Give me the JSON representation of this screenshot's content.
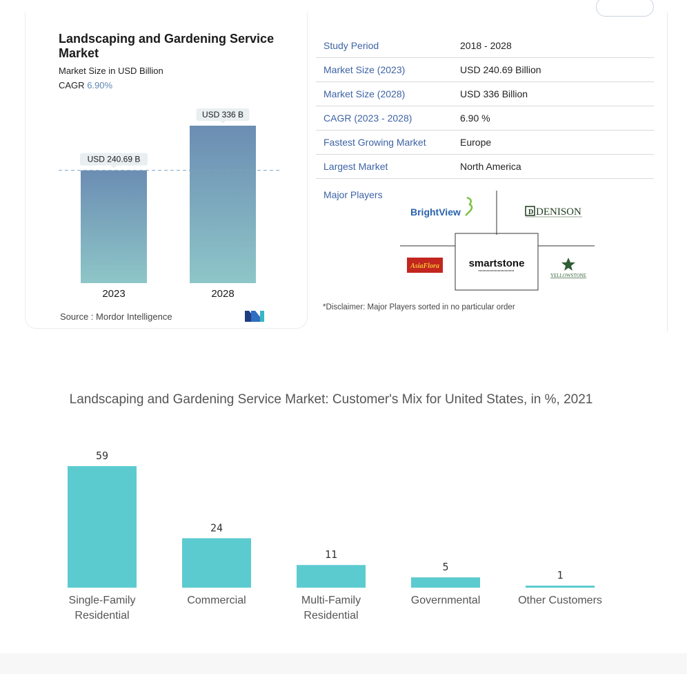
{
  "card": {
    "title": "Landscaping and Gardening Service Market",
    "subtitle": "Market Size in USD Billion",
    "cagr_label": "CAGR",
    "cagr_value": "6.90%",
    "source": "Source :  Mordor Intelligence",
    "brand_logo_color": "#1f3d82"
  },
  "card_chart": {
    "type": "bar",
    "categories": [
      "2023",
      "2028"
    ],
    "values": [
      240.69,
      336
    ],
    "data_labels": [
      "USD 240.69 B",
      "USD 336 B"
    ],
    "baseline_reference": 240.69,
    "gradient_top": "#6b8db3",
    "gradient_bottom": "#8ec6c8"
  },
  "info_rows": [
    {
      "key": "Study Period",
      "value": "2018 - 2028"
    },
    {
      "key": "Market Size (2023)",
      "value": "USD 240.69 Billion"
    },
    {
      "key": "Market Size (2028)",
      "value": "USD 336 Billion"
    },
    {
      "key": "CAGR (2023 - 2028)",
      "value": "6.90 %"
    },
    {
      "key": "Fastest Growing Market",
      "value": "Europe"
    },
    {
      "key": "Largest Market",
      "value": "North America"
    }
  ],
  "major_players": {
    "label": "Major Players",
    "logos": [
      "BrightView",
      "DENISON",
      "smartstone",
      "AsiaFlora",
      "YELLOWSTONE"
    ]
  },
  "disclaimer": "*Disclaimer: Major Players sorted in no particular order",
  "chart_data": {
    "type": "bar",
    "title": "Landscaping and Gardening Service Market: Customer's Mix for United States, in %, 2021",
    "categories": [
      [
        "Single-Family",
        "Residential"
      ],
      [
        "Commercial"
      ],
      [
        "Multi-Family",
        "Residential"
      ],
      [
        "Governmental"
      ],
      [
        "Other Customers"
      ]
    ],
    "values": [
      59,
      24,
      11,
      5,
      1
    ],
    "xlabel": "",
    "ylabel": "",
    "ylim": [
      0,
      59
    ],
    "grid": false,
    "bar_color": "#5ccbd0"
  }
}
